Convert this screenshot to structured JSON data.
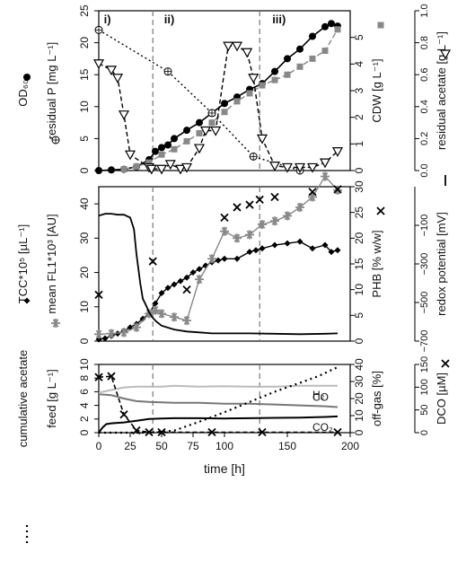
{
  "chart_data": [
    {
      "type": "line",
      "x_axis": {
        "range": [
          0,
          200
        ]
      },
      "left_axis": {
        "range": [
          0,
          25
        ],
        "ticks": [
          0,
          5,
          10,
          15,
          20,
          25
        ]
      },
      "right_axis1": {
        "label": "CDW [g L⁻¹]",
        "range": [
          0,
          6
        ],
        "ticks": [
          0,
          1,
          2,
          3,
          4,
          5
        ]
      },
      "right_axis2": {
        "label": "residual acetate [g L⁻¹]",
        "range": [
          0,
          1.0
        ],
        "ticks": [
          "0.0",
          "0.2",
          "0.4",
          "0.6",
          "0.8",
          "1.0"
        ]
      },
      "left_labels": [
        "OD₆₀₀",
        "residual P [mg L⁻¹]"
      ],
      "phase_lines": [
        43,
        128
      ],
      "phase_labels": [
        "i)",
        "ii)",
        "iii)"
      ],
      "series": [
        {
          "name": "OD600",
          "axis": "left",
          "color": "#000000",
          "marker": "circle",
          "x": [
            0,
            10,
            20,
            30,
            40,
            45,
            50,
            55,
            60,
            70,
            80,
            90,
            100,
            110,
            120,
            130,
            140,
            150,
            160,
            170,
            180,
            185,
            190
          ],
          "y": [
            0,
            0.1,
            0.2,
            0.6,
            1.7,
            3,
            3.6,
            4,
            5,
            6.3,
            7.5,
            9,
            10.5,
            11.5,
            12.7,
            13.6,
            15.5,
            17.5,
            19,
            21,
            22.5,
            23,
            22.6
          ]
        },
        {
          "name": "CDW",
          "axis": "right1",
          "color": "#888888",
          "marker": "square",
          "x": [
            20,
            30,
            40,
            50,
            60,
            70,
            80,
            90,
            100,
            110,
            120,
            130,
            140,
            150,
            160,
            170,
            180,
            190
          ],
          "y": [
            0.05,
            0.15,
            0.3,
            0.6,
            0.8,
            1.1,
            1.4,
            1.8,
            2.2,
            2.6,
            2.9,
            3.2,
            3.4,
            3.6,
            3.9,
            4.2,
            4.5,
            5.3
          ]
        },
        {
          "name": "residual P",
          "axis": "left",
          "color": "#000000",
          "marker": "circle-plus",
          "x": [
            0,
            55,
            90,
            123,
            160
          ],
          "y": [
            22,
            15.5,
            9,
            2.2,
            0
          ]
        },
        {
          "name": "residual acetate",
          "axis": "right2",
          "color": "#000000",
          "marker": "triangle-down",
          "x": [
            0,
            10,
            15,
            20,
            25,
            40,
            42,
            50,
            57,
            65,
            70,
            80,
            85,
            93,
            103,
            110,
            118,
            123,
            130,
            140,
            150,
            160,
            170,
            180,
            190
          ],
          "y": [
            0.67,
            0.63,
            0.58,
            0.35,
            0.1,
            0.02,
            0.01,
            0.01,
            0.04,
            0.01,
            0.02,
            0.14,
            0.25,
            0.25,
            0.78,
            0.78,
            0.74,
            0.58,
            0.2,
            0.03,
            0.02,
            0.02,
            0.02,
            0.05,
            0.12
          ]
        }
      ]
    },
    {
      "type": "line",
      "x_axis": {
        "range": [
          0,
          200
        ]
      },
      "left_axis": {
        "range": [
          0,
          45
        ],
        "ticks": [
          0,
          10,
          20,
          30,
          40
        ]
      },
      "right_axis1": {
        "label": "PHB [% w/w]",
        "range": [
          0,
          30
        ],
        "ticks": [
          0,
          5,
          10,
          15,
          20,
          25,
          30
        ]
      },
      "right_axis2": {
        "label": "redox potential [mV]",
        "range": [
          -700,
          100
        ],
        "ticks": [
          "−700",
          "−500",
          "−300",
          "−100"
        ]
      },
      "left_labels": [
        "TCC*10⁵ [µL⁻¹]",
        "mean FL1*10³ [AU]"
      ],
      "phase_lines": [
        43,
        128
      ],
      "series": [
        {
          "name": "TCC",
          "axis": "left",
          "color": "#000000",
          "marker": "diamond",
          "x": [
            0,
            5,
            10,
            15,
            20,
            25,
            30,
            35,
            40,
            45,
            50,
            55,
            60,
            65,
            70,
            75,
            80,
            85,
            90,
            95,
            100,
            110,
            120,
            125,
            130,
            140,
            150,
            160,
            170,
            180,
            185,
            190
          ],
          "y": [
            0.5,
            0.8,
            1.5,
            2.2,
            3,
            4,
            5,
            6.5,
            8,
            11,
            14,
            15.5,
            16.5,
            17.5,
            18.5,
            20,
            21,
            22,
            23,
            23.5,
            24,
            24,
            26,
            26.5,
            27,
            28,
            28.5,
            29,
            27,
            28,
            26,
            26.5
          ]
        },
        {
          "name": "mean FL1",
          "axis": "left",
          "color": "#888888",
          "marker": "asterisk",
          "x": [
            0,
            10,
            20,
            30,
            40,
            45,
            50,
            60,
            70,
            80,
            90,
            100,
            110,
            120,
            130,
            140,
            150,
            160,
            170,
            180,
            190
          ],
          "y": [
            2,
            2.2,
            2.5,
            4,
            8,
            9,
            8,
            7,
            6,
            18,
            24,
            32,
            30,
            31,
            34,
            35,
            36.5,
            39,
            42,
            48,
            44
          ]
        },
        {
          "name": "PHB",
          "axis": "right1",
          "color": "#000000",
          "marker": "cross",
          "x": [
            0,
            43,
            70,
            100,
            110,
            120,
            128,
            140,
            170,
            190
          ],
          "y": [
            9,
            15.5,
            10,
            24,
            26,
            26.5,
            27.5,
            28,
            29,
            29.5
          ]
        },
        {
          "name": "redox potential",
          "axis": "right2",
          "color": "#000000",
          "marker": "none",
          "x": [
            0,
            5,
            10,
            15,
            20,
            25,
            28,
            30,
            33,
            35,
            38,
            40,
            43,
            46,
            50,
            60,
            70,
            80,
            90,
            100,
            120,
            140,
            160,
            180,
            190
          ],
          "y": [
            -50,
            -40,
            -40,
            -45,
            -45,
            -60,
            -120,
            -250,
            -400,
            -480,
            -520,
            -550,
            -580,
            -600,
            -620,
            -640,
            -650,
            -655,
            -660,
            -660,
            -660,
            -662,
            -664,
            -662,
            -660
          ]
        }
      ]
    },
    {
      "type": "line",
      "x_axis": {
        "label": "time [h]",
        "range": [
          0,
          200
        ],
        "ticks": [
          0,
          25,
          50,
          75,
          100,
          150,
          200
        ]
      },
      "left_axis": {
        "range": [
          0,
          10
        ],
        "ticks": [
          0,
          2,
          4,
          6,
          8,
          10
        ]
      },
      "right_axis1": {
        "label": "off-gas [%]",
        "range": [
          0,
          40
        ],
        "ticks": [
          0,
          10,
          20,
          30,
          40
        ]
      },
      "right_axis2": {
        "label": "DCO [µM]",
        "range": [
          0,
          150
        ],
        "ticks": [
          0,
          50,
          100,
          150
        ]
      },
      "left_labels": [
        "cumulative acetate",
        "feed [g L⁻¹]"
      ],
      "phase_lines": [
        43,
        128
      ],
      "series": [
        {
          "name": "H₂",
          "axis": "right1",
          "color": "#bbbbbb",
          "marker": "none",
          "x": [
            0,
            10,
            20,
            30,
            40,
            50,
            60,
            80,
            100,
            120,
            140,
            160,
            180,
            190
          ],
          "y": [
            23.5,
            25,
            26.5,
            27,
            27,
            27,
            27.5,
            27,
            27.2,
            27,
            27,
            27.5,
            27.5,
            27.5
          ]
        },
        {
          "name": "CO",
          "axis": "right1",
          "color": "#777777",
          "marker": "none",
          "x": [
            0,
            10,
            20,
            30,
            40,
            50,
            60,
            80,
            100,
            120,
            140,
            160,
            180,
            190
          ],
          "y": [
            22.5,
            22,
            20,
            18.5,
            18,
            17.8,
            17.5,
            17.5,
            17,
            17,
            16.5,
            16,
            15.5,
            15
          ]
        },
        {
          "name": "CO₂",
          "axis": "right1",
          "color": "#000000",
          "marker": "none",
          "x": [
            0,
            3,
            6,
            10,
            20,
            30,
            40,
            50,
            60,
            80,
            100,
            120,
            140,
            160,
            180,
            190
          ],
          "y": [
            0,
            3,
            5,
            5.5,
            6,
            7,
            8,
            8.3,
            8.5,
            8.5,
            8.3,
            8.5,
            8.7,
            8.8,
            9.2,
            9.5
          ]
        },
        {
          "name": "cumulative acetate feed",
          "axis": "left",
          "color": "#000000",
          "marker": "none",
          "x": [
            0,
            40,
            60,
            80,
            100,
            120,
            140,
            160,
            175,
            190
          ],
          "y": [
            0,
            0,
            0.3,
            1.6,
            3,
            4.5,
            6,
            7.3,
            8.3,
            9.6
          ]
        },
        {
          "name": "DCO",
          "axis": "right2",
          "color": "#000000",
          "marker": "cross",
          "x": [
            0,
            10,
            20,
            30,
            40,
            50,
            90,
            130,
            190
          ],
          "y": [
            122,
            124,
            40,
            5,
            1,
            1,
            1,
            1,
            1
          ]
        }
      ]
    }
  ]
}
